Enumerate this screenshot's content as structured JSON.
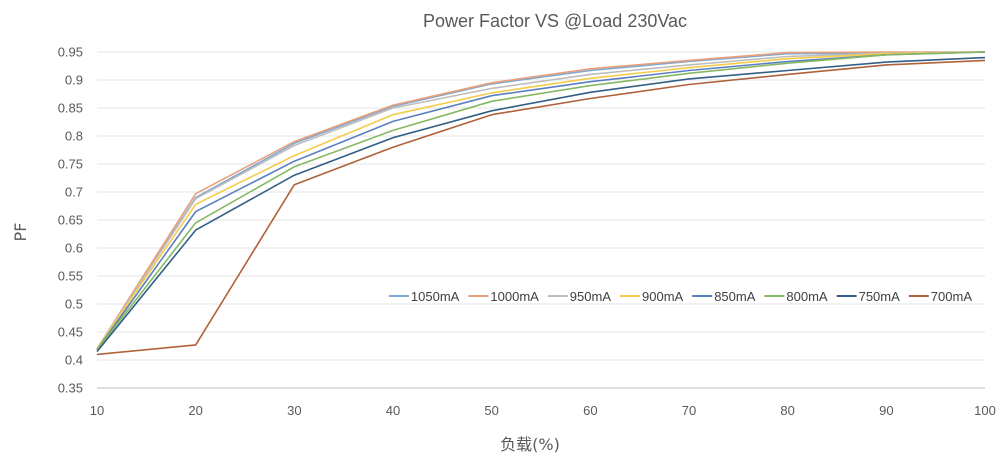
{
  "chart_data": {
    "type": "line",
    "title": "Power Factor VS @Load 230Vac",
    "xlabel": "负载(%)",
    "ylabel": "PF",
    "x": [
      10,
      20,
      30,
      40,
      50,
      60,
      70,
      80,
      90,
      100
    ],
    "xlim": [
      10,
      100
    ],
    "ylim": [
      0.35,
      0.95
    ],
    "xticks": [
      "10",
      "20",
      "30",
      "40",
      "50",
      "60",
      "70",
      "80",
      "90",
      "100"
    ],
    "yticks": [
      "0.35",
      "0.4",
      "0.45",
      "0.5",
      "0.55",
      "0.6",
      "0.65",
      "0.7",
      "0.75",
      "0.8",
      "0.85",
      "0.9",
      "0.95"
    ],
    "grid": "horizontal",
    "legend_position": "inside-right",
    "series": [
      {
        "name": "1050mA",
        "color": "#7fa7d1",
        "values": [
          0.42,
          0.69,
          0.787,
          0.853,
          0.893,
          0.917,
          0.933,
          0.947,
          0.948,
          0.95
        ]
      },
      {
        "name": "1000mA",
        "color": "#e8a07a",
        "values": [
          0.42,
          0.697,
          0.79,
          0.855,
          0.895,
          0.92,
          0.935,
          0.949,
          0.95,
          0.95
        ]
      },
      {
        "name": "950mA",
        "color": "#bdbdbd",
        "values": [
          0.42,
          0.688,
          0.783,
          0.85,
          0.885,
          0.91,
          0.927,
          0.942,
          0.948,
          0.95
        ]
      },
      {
        "name": "900mA",
        "color": "#f5cc4a",
        "values": [
          0.42,
          0.678,
          0.765,
          0.838,
          0.877,
          0.903,
          0.922,
          0.938,
          0.947,
          0.95
        ]
      },
      {
        "name": "850mA",
        "color": "#5a7fc1",
        "values": [
          0.418,
          0.665,
          0.755,
          0.826,
          0.872,
          0.897,
          0.917,
          0.933,
          0.945,
          0.95
        ]
      },
      {
        "name": "800mA",
        "color": "#86b862",
        "values": [
          0.418,
          0.645,
          0.745,
          0.81,
          0.862,
          0.89,
          0.912,
          0.93,
          0.945,
          0.95
        ]
      },
      {
        "name": "750mA",
        "color": "#335f87",
        "values": [
          0.415,
          0.632,
          0.73,
          0.797,
          0.845,
          0.878,
          0.902,
          0.917,
          0.932,
          0.94
        ]
      },
      {
        "name": "700mA",
        "color": "#b0623a",
        "values": [
          0.41,
          0.427,
          0.713,
          0.78,
          0.838,
          0.867,
          0.892,
          0.91,
          0.927,
          0.935
        ]
      }
    ]
  }
}
